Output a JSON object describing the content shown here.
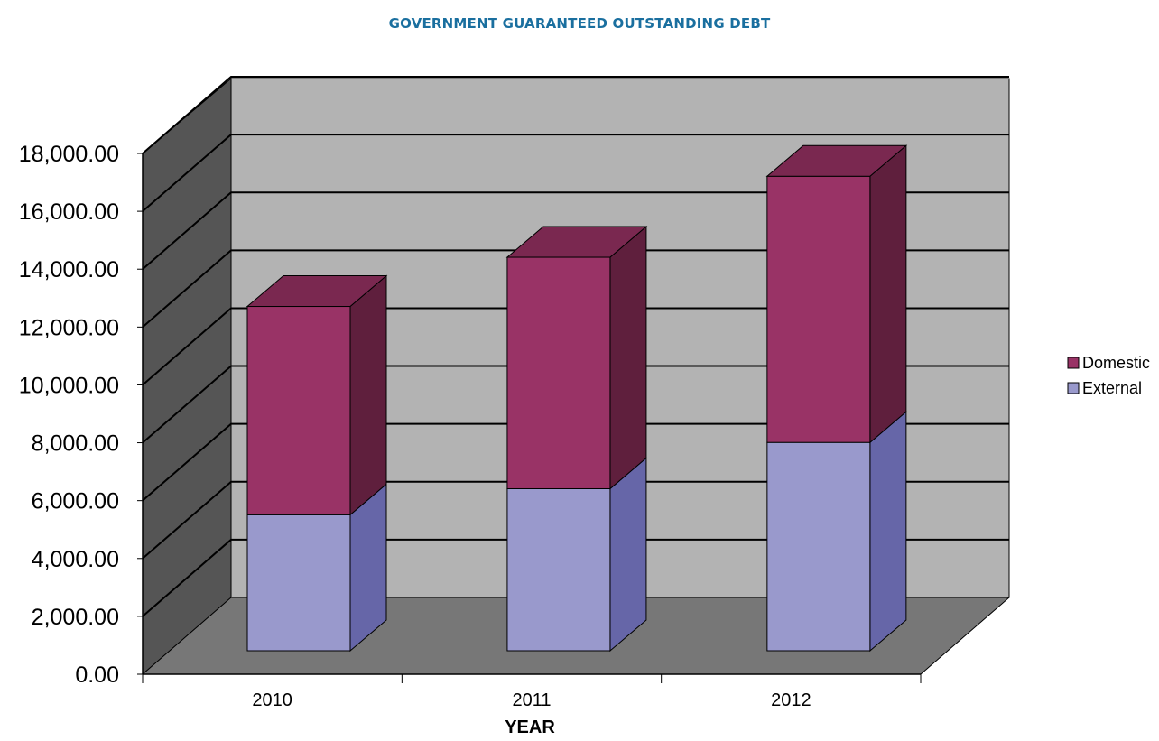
{
  "title": "GOVERNMENT GUARANTEED OUTSTANDING DEBT",
  "chart_data": {
    "type": "bar",
    "stacked": true,
    "three_d": true,
    "title": "GOVERNMENT GUARANTEED OUTSTANDING DEBT",
    "xlabel": "YEAR",
    "ylabel": "",
    "categories": [
      "2010",
      "2011",
      "2012"
    ],
    "series": [
      {
        "name": "External",
        "values": [
          4700,
          5600,
          7200
        ],
        "front_color": "#9999cc",
        "side_color": "#6666a8",
        "top_color": "#7f7fbb"
      },
      {
        "name": "Domestic",
        "values": [
          7200,
          8000,
          9200
        ],
        "front_color": "#993366",
        "side_color": "#5f1f3d",
        "top_color": "#7a2850"
      }
    ],
    "ylim": [
      0,
      18000
    ],
    "y_ticks": [
      "0.00",
      "2,000.00",
      "4,000.00",
      "6,000.00",
      "8,000.00",
      "10,000.00",
      "12,000.00",
      "14,000.00",
      "16,000.00",
      "18,000.00"
    ],
    "grid": true,
    "legend_position": "right",
    "colors": {
      "back_wall": "#b3b3b3",
      "side_wall": "#555555",
      "floor": "#777777",
      "gridline": "#000000"
    }
  }
}
